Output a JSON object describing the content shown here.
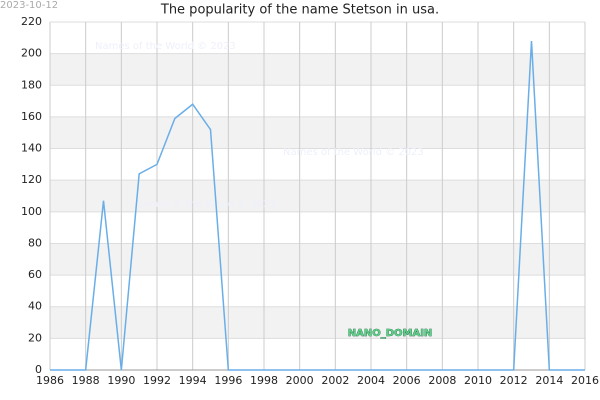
{
  "date": "2023-10-12",
  "watermarks": [
    "Names of the World © 2023",
    "Names of the World © 2023",
    "Names of the World © 2023"
  ],
  "badge": "NANO_DOMAIN",
  "chart_data": {
    "type": "line",
    "title": "The popularity of the name Stetson in usa.",
    "x": [
      1986,
      1987,
      1988,
      1989,
      1990,
      1991,
      1992,
      1993,
      1994,
      1995,
      1996,
      1997,
      1998,
      1999,
      2000,
      2001,
      2002,
      2003,
      2004,
      2005,
      2006,
      2007,
      2008,
      2009,
      2010,
      2011,
      2012,
      2013,
      2014,
      2015,
      2016
    ],
    "series": [
      {
        "name": "Stetson",
        "color": "#6aaee8",
        "values": [
          0,
          0,
          0,
          107,
          0,
          124,
          130,
          159,
          168,
          152,
          0,
          0,
          0,
          0,
          0,
          0,
          0,
          0,
          0,
          0,
          0,
          0,
          0,
          0,
          0,
          0,
          0,
          208,
          0,
          0,
          0
        ]
      }
    ],
    "xlim": [
      1986,
      2016
    ],
    "xticks": [
      1986,
      1988,
      1990,
      1992,
      1994,
      1996,
      1998,
      2000,
      2002,
      2004,
      2006,
      2008,
      2010,
      2012,
      2014,
      2016
    ],
    "ylim": [
      0,
      220
    ],
    "yticks": [
      0,
      20,
      40,
      60,
      80,
      100,
      120,
      140,
      160,
      180,
      200,
      220
    ],
    "grid": true,
    "banded": true
  }
}
